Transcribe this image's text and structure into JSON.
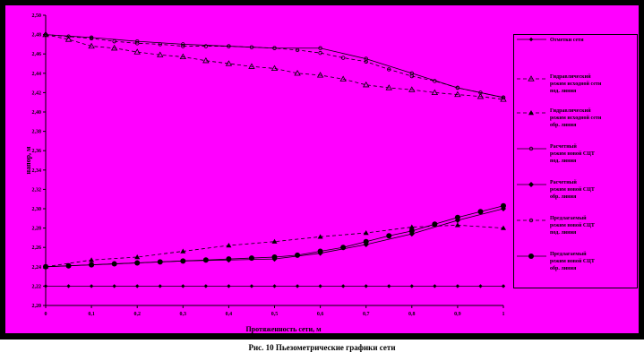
{
  "chart_data": {
    "type": "line",
    "caption": "Рис. 10      Пьезометрические графики сети",
    "xlabel": "Протяженность сети, м",
    "ylabel": "напор, м",
    "xlim": [
      0,
      1
    ],
    "ylim": [
      2.2,
      2.5
    ],
    "x_ticks": [
      0,
      0.1,
      0.2,
      0.3,
      0.4,
      0.5,
      0.6,
      0.7,
      0.8,
      0.9,
      1
    ],
    "x_tick_labels": [
      "0",
      "0,1",
      "0,2",
      "0,3",
      "0,4",
      "0,5",
      "0,6",
      "0,7",
      "0,8",
      "0,9",
      "1"
    ],
    "y_ticks": [
      2.2,
      2.22,
      2.24,
      2.26,
      2.28,
      2.3,
      2.32,
      2.34,
      2.36,
      2.38,
      2.4,
      2.42,
      2.44,
      2.46,
      2.48,
      2.5
    ],
    "y_tick_labels": [
      "2,20",
      "2,22",
      "2,24",
      "2,26",
      "2,28",
      "2,30",
      "2,32",
      "2,34",
      "2,36",
      "2,38",
      "2,40",
      "2,42",
      "2,44",
      "2,46",
      "2,48",
      "2,50"
    ],
    "grid": false,
    "legend_position": "right",
    "series": [
      {
        "name": "Отметки сети",
        "marker": "diamond",
        "dash": "none",
        "color": "#000000",
        "x": [
          0,
          0.05,
          0.1,
          0.15,
          0.2,
          0.25,
          0.3,
          0.35,
          0.4,
          0.45,
          0.5,
          0.55,
          0.6,
          0.65,
          0.7,
          0.75,
          0.8,
          0.85,
          0.9,
          0.95,
          1
        ],
        "y": [
          2.22,
          2.22,
          2.22,
          2.22,
          2.22,
          2.22,
          2.22,
          2.22,
          2.22,
          2.22,
          2.22,
          2.22,
          2.22,
          2.22,
          2.22,
          2.22,
          2.22,
          2.22,
          2.22,
          2.22,
          2.22
        ]
      },
      {
        "name": "Гидравлический режим исходной сети под. линия",
        "marker": "triangle-open",
        "dash": "dash",
        "color": "#000000",
        "x": [
          0,
          0.05,
          0.1,
          0.15,
          0.2,
          0.25,
          0.3,
          0.35,
          0.4,
          0.45,
          0.5,
          0.55,
          0.6,
          0.65,
          0.7,
          0.75,
          0.8,
          0.85,
          0.9,
          0.95,
          1
        ],
        "y": [
          2.48,
          2.475,
          2.468,
          2.466,
          2.462,
          2.459,
          2.457,
          2.453,
          2.45,
          2.447,
          2.445,
          2.44,
          2.438,
          2.434,
          2.428,
          2.425,
          2.423,
          2.42,
          2.418,
          2.416,
          2.413
        ]
      },
      {
        "name": "Гидравлический режим исходной сети обр. линия",
        "marker": "triangle-filled",
        "dash": "dash",
        "color": "#000000",
        "x": [
          0,
          0.1,
          0.2,
          0.3,
          0.4,
          0.5,
          0.6,
          0.7,
          0.8,
          0.9,
          1
        ],
        "y": [
          2.24,
          2.247,
          2.25,
          2.256,
          2.262,
          2.266,
          2.271,
          2.275,
          2.281,
          2.283,
          2.28
        ]
      },
      {
        "name": "Расчетный режим новой СЦТ под. линия",
        "marker": "circle-open-small",
        "dash": "none",
        "color": "#000000",
        "x": [
          0,
          0.1,
          0.2,
          0.3,
          0.4,
          0.5,
          0.6,
          0.7,
          0.8,
          0.9,
          1
        ],
        "y": [
          2.48,
          2.477,
          2.473,
          2.47,
          2.468,
          2.466,
          2.466,
          2.455,
          2.44,
          2.425,
          2.415
        ]
      },
      {
        "name": "Расчетный режим новой СЦТ обр. линия",
        "marker": "diamond-filled",
        "dash": "none",
        "color": "#000000",
        "x": [
          0,
          0.1,
          0.2,
          0.3,
          0.4,
          0.5,
          0.6,
          0.7,
          0.8,
          0.9,
          1
        ],
        "y": [
          2.24,
          2.242,
          2.244,
          2.246,
          2.247,
          2.248,
          2.254,
          2.263,
          2.274,
          2.288,
          2.3
        ]
      },
      {
        "name": "Предлагаемый режим новой СЦТ под. линия",
        "marker": "circle-open-small",
        "dash": "dash",
        "color": "#000000",
        "x": [
          0,
          0.05,
          0.1,
          0.15,
          0.2,
          0.25,
          0.3,
          0.35,
          0.4,
          0.45,
          0.5,
          0.55,
          0.6,
          0.65,
          0.7,
          0.75,
          0.8,
          0.85,
          0.9,
          0.95,
          1
        ],
        "y": [
          2.48,
          2.478,
          2.476,
          2.473,
          2.471,
          2.47,
          2.468,
          2.468,
          2.468,
          2.467,
          2.466,
          2.464,
          2.461,
          2.456,
          2.452,
          2.444,
          2.437,
          2.432,
          2.425,
          2.42,
          2.415
        ]
      },
      {
        "name": "Предлагаемый режим новой СЦТ обр. линия",
        "marker": "circle-filled",
        "dash": "none",
        "color": "#000000",
        "x": [
          0,
          0.05,
          0.1,
          0.15,
          0.2,
          0.25,
          0.3,
          0.35,
          0.4,
          0.45,
          0.5,
          0.55,
          0.6,
          0.65,
          0.7,
          0.75,
          0.8,
          0.85,
          0.9,
          0.95,
          1
        ],
        "y": [
          2.24,
          2.241,
          2.242,
          2.243,
          2.244,
          2.245,
          2.246,
          2.247,
          2.248,
          2.249,
          2.25,
          2.252,
          2.256,
          2.26,
          2.266,
          2.272,
          2.277,
          2.284,
          2.291,
          2.297,
          2.303
        ]
      }
    ],
    "legend": [
      {
        "lines": [
          "Отметки  сети"
        ]
      },
      {
        "lines": [
          "Гидравлический",
          "режим исходной сети",
          "под. линия"
        ]
      },
      {
        "lines": [
          "Гидравлический",
          "режим исходной сети",
          "обр. линия"
        ]
      },
      {
        "lines": [
          "Расчетный",
          "режим новой СЦТ",
          "под. линия"
        ]
      },
      {
        "lines": [
          "Расчетный",
          "режим новой СЦТ",
          "обр. линия"
        ]
      },
      {
        "lines": [
          "Предлагаемый",
          "режим новой СЦТ",
          "под. линия"
        ]
      },
      {
        "lines": [
          "Предлагаемый",
          "режим новой СЦТ",
          "обр. линия"
        ]
      }
    ]
  }
}
